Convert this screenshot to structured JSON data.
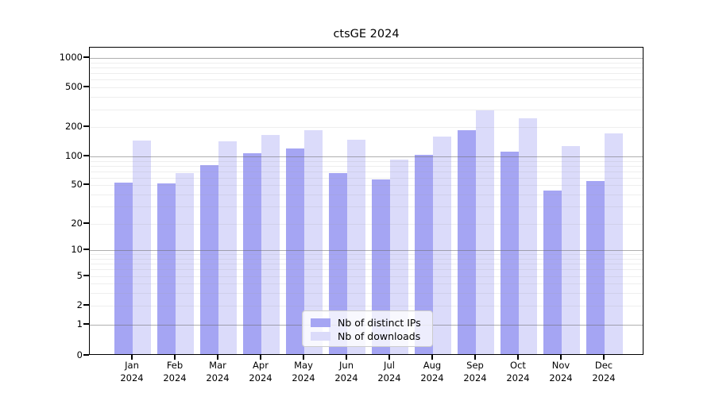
{
  "chart_data": {
    "type": "bar",
    "title": "ctsGE 2024",
    "categories": [
      "Jan 2024",
      "Feb 2024",
      "Mar 2024",
      "Apr 2024",
      "May 2024",
      "Jun 2024",
      "Jul 2024",
      "Aug 2024",
      "Sep 2024",
      "Oct 2024",
      "Nov 2024",
      "Dec 2024"
    ],
    "series": [
      {
        "name": "Nb of distinct IPs",
        "color": "#a5a5f3",
        "values": [
          51,
          50,
          78,
          104,
          116,
          64,
          55,
          101,
          179,
          107,
          42,
          53
        ]
      },
      {
        "name": "Nb of downloads",
        "color": "#dbdbfa",
        "values": [
          140,
          64,
          138,
          160,
          178,
          142,
          90,
          155,
          285,
          235,
          123,
          166
        ]
      }
    ],
    "xlabel": "",
    "ylabel": "",
    "y_ticks": [
      0,
      1,
      2,
      5,
      10,
      20,
      50,
      100,
      200,
      500,
      1000
    ],
    "y_scale": "log-like (compressed near zero)",
    "ylim": [
      0,
      1400
    ],
    "grid": true,
    "legend_position": "lower center"
  },
  "legend": {
    "entries": [
      {
        "label": "Nb of distinct IPs",
        "color": "#a5a5f3"
      },
      {
        "label": "Nb of downloads",
        "color": "#dbdbfa"
      }
    ]
  }
}
